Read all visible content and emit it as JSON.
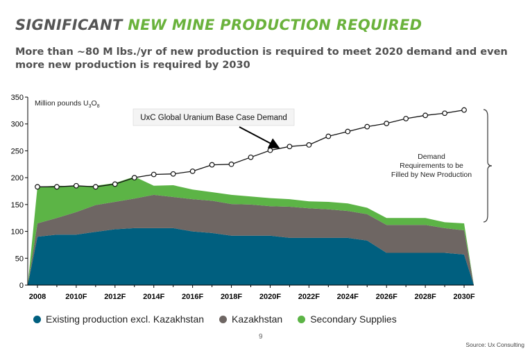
{
  "header": {
    "title_part1": "SIGNIFICANT",
    "title_part2": "NEW MINE PRODUCTION REQUIRED",
    "subtitle": "More than ~80 M lbs./yr of new production is required to meet 2020 demand and even more new production is required by 2030"
  },
  "chart_data": {
    "type": "area",
    "title": "",
    "ylabel": "Million pounds U3O8",
    "ylim": [
      0,
      350
    ],
    "yticks": [
      0,
      50,
      100,
      150,
      200,
      250,
      300,
      350
    ],
    "x": [
      2007.5,
      2008,
      2009,
      2010,
      2011,
      2012,
      2013,
      2014,
      2015,
      2016,
      2017,
      2018,
      2019,
      2020,
      2021,
      2022,
      2023,
      2024,
      2025,
      2026,
      2027,
      2028,
      2029,
      2030,
      2030.5
    ],
    "xlim": [
      2007.5,
      2030.5
    ],
    "xticks": [
      2008,
      2010,
      2012,
      2014,
      2016,
      2018,
      2020,
      2022,
      2024,
      2026,
      2028,
      2030
    ],
    "xtick_labels": [
      "2008",
      "2010F",
      "2012F",
      "2014F",
      "2016F",
      "2018F",
      "2020F",
      "2022F",
      "2024F",
      "2026F",
      "2028F",
      "2030F"
    ],
    "series": [
      {
        "name": "Existing production excl. Kazakhstan",
        "color": "#005f7f",
        "values": [
          0,
          90,
          94,
          94,
          99,
          104,
          106,
          106,
          106,
          100,
          97,
          92,
          92,
          92,
          88,
          88,
          88,
          88,
          83,
          60,
          60,
          60,
          60,
          57,
          0
        ]
      },
      {
        "name": "Kazakhstan",
        "color": "#6e6663",
        "values": [
          0,
          25,
          31,
          42,
          50,
          51,
          55,
          62,
          58,
          60,
          60,
          59,
          58,
          55,
          58,
          55,
          53,
          50,
          49,
          52,
          52,
          52,
          46,
          45,
          0
        ]
      },
      {
        "name": "Secondary Supplies",
        "color": "#5cb446",
        "values": [
          0,
          68,
          60,
          48,
          36,
          35,
          41,
          17,
          22,
          18,
          16,
          17,
          15,
          15,
          14,
          13,
          14,
          14,
          12,
          13,
          13,
          13,
          11,
          13,
          0
        ]
      }
    ],
    "demand": {
      "name": "UxC Global Uranium Base Case Demand",
      "x": [
        2008,
        2009,
        2010,
        2011,
        2012,
        2013,
        2014,
        2015,
        2016,
        2017,
        2018,
        2019,
        2020,
        2021,
        2022,
        2023,
        2024,
        2025,
        2026,
        2027,
        2028,
        2029,
        2030
      ],
      "values": [
        183,
        183,
        185,
        183,
        188,
        200,
        206,
        207,
        212,
        224,
        225,
        238,
        251,
        258,
        261,
        277,
        286,
        295,
        301,
        310,
        316,
        320,
        326
      ]
    },
    "annotations": {
      "demand_label": "UxC Global Uranium Base Case Demand",
      "bracket_line1": "Demand",
      "bracket_line2": "Requirements to be",
      "bracket_line3": "Filled by New Production"
    }
  },
  "legend": {
    "items": [
      {
        "label": "Existing production excl. Kazakhstan",
        "color": "#005f7f"
      },
      {
        "label": "Kazakhstan",
        "color": "#6e6663"
      },
      {
        "label": "Secondary Supplies",
        "color": "#5cb446"
      }
    ]
  },
  "footer": {
    "page_number": "9",
    "source": "Source: Ux Consulting"
  }
}
